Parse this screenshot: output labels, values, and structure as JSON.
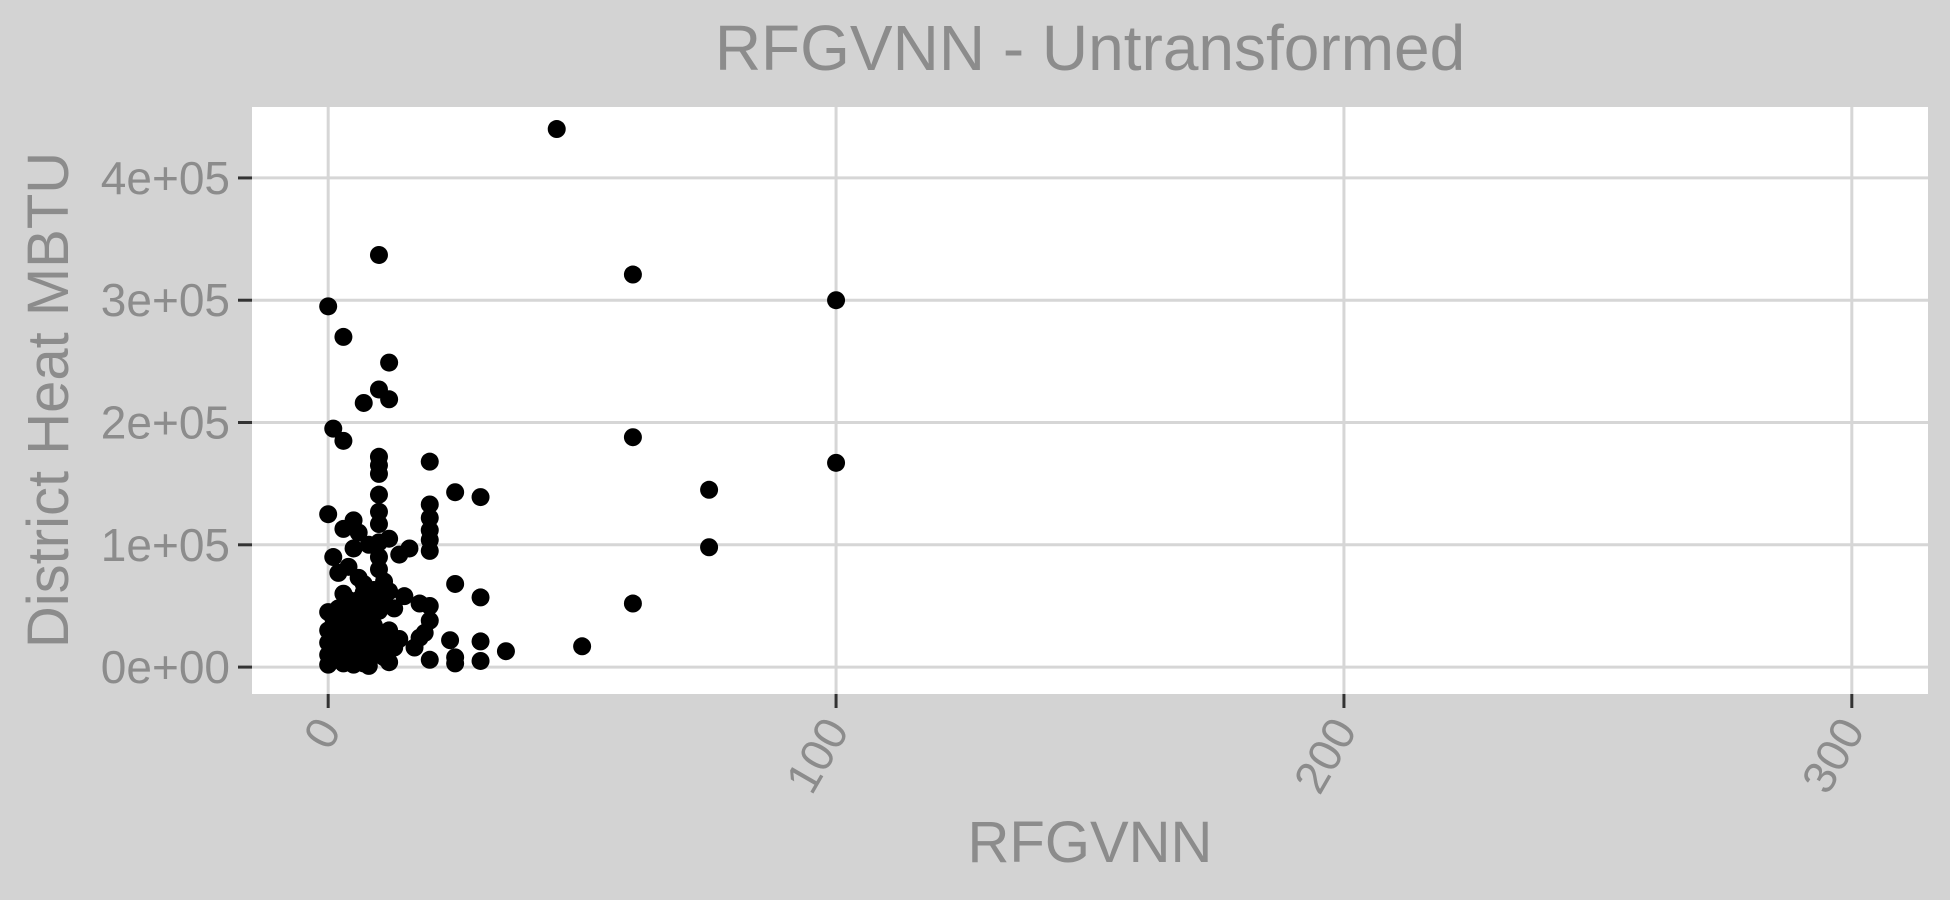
{
  "chart_data": {
    "type": "scatter",
    "title": "RFGVNN - Untransformed",
    "xlabel": "RFGVNN",
    "ylabel": "District Heat MBTU",
    "xlim": [
      -15,
      315
    ],
    "ylim": [
      -22000,
      458000
    ],
    "x_ticks": [
      0,
      100,
      200,
      300
    ],
    "x_tick_labels": [
      "0",
      "100",
      "200",
      "300"
    ],
    "y_ticks": [
      0,
      100000,
      200000,
      300000,
      400000
    ],
    "y_tick_labels": [
      "0e+00",
      "1e+05",
      "2e+05",
      "3e+05",
      "4e+05"
    ],
    "grid": true,
    "legend": "none",
    "colors": {
      "background": "#d3d3d3",
      "panel": "#ffffff",
      "grid": "#d6d6d6",
      "point": "#000000",
      "text": "#8c8c8c"
    },
    "points": [
      [
        45,
        440000
      ],
      [
        10,
        337000
      ],
      [
        60,
        321000
      ],
      [
        100,
        300000
      ],
      [
        0,
        295000
      ],
      [
        3,
        270000
      ],
      [
        12,
        249000
      ],
      [
        10,
        227000
      ],
      [
        12,
        219000
      ],
      [
        7,
        216000
      ],
      [
        1,
        195000
      ],
      [
        3,
        185000
      ],
      [
        60,
        188000
      ],
      [
        100,
        167000
      ],
      [
        20,
        168000
      ],
      [
        75,
        145000
      ],
      [
        75,
        98000
      ],
      [
        25,
        143000
      ],
      [
        30,
        139000
      ],
      [
        60,
        52000
      ],
      [
        50,
        17000
      ],
      [
        35,
        13000
      ],
      [
        10,
        172000
      ],
      [
        10,
        165000
      ],
      [
        10,
        158000
      ],
      [
        10,
        141000
      ],
      [
        10,
        127000
      ],
      [
        10,
        117000
      ],
      [
        10,
        102000
      ],
      [
        10,
        90000
      ],
      [
        10,
        80000
      ],
      [
        20,
        133000
      ],
      [
        20,
        122000
      ],
      [
        20,
        112000
      ],
      [
        20,
        104000
      ],
      [
        20,
        95000
      ],
      [
        16,
        97000
      ],
      [
        14,
        92000
      ],
      [
        0,
        125000
      ],
      [
        5,
        120000
      ],
      [
        6,
        110000
      ],
      [
        3,
        113000
      ],
      [
        12,
        105000
      ],
      [
        8,
        100000
      ],
      [
        5,
        97000
      ],
      [
        1,
        90000
      ],
      [
        2,
        77000
      ],
      [
        4,
        82000
      ],
      [
        6,
        73000
      ],
      [
        7,
        68000
      ],
      [
        11,
        70000
      ],
      [
        9,
        63000
      ],
      [
        12,
        62000
      ],
      [
        15,
        58000
      ],
      [
        18,
        52000
      ],
      [
        20,
        50000
      ],
      [
        20,
        38000
      ],
      [
        25,
        68000
      ],
      [
        30,
        57000
      ],
      [
        3,
        60000
      ],
      [
        4,
        55000
      ],
      [
        5,
        50000
      ],
      [
        6,
        46000
      ],
      [
        7,
        42000
      ],
      [
        8,
        38000
      ],
      [
        9,
        34000
      ],
      [
        0,
        45000
      ],
      [
        1,
        40000
      ],
      [
        2,
        35000
      ],
      [
        3,
        30000
      ],
      [
        4,
        25000
      ],
      [
        5,
        20000
      ],
      [
        6,
        15000
      ],
      [
        7,
        10000
      ],
      [
        8,
        5000
      ],
      [
        0,
        30000
      ],
      [
        0,
        20000
      ],
      [
        0,
        10000
      ],
      [
        0,
        2000
      ],
      [
        1,
        15000
      ],
      [
        2,
        8000
      ],
      [
        3,
        3000
      ],
      [
        4,
        12000
      ],
      [
        5,
        6000
      ],
      [
        6,
        28000
      ],
      [
        7,
        22000
      ],
      [
        8,
        18000
      ],
      [
        9,
        26000
      ],
      [
        10,
        12000
      ],
      [
        11,
        8000
      ],
      [
        12,
        4000
      ],
      [
        13,
        16000
      ],
      [
        14,
        23000
      ],
      [
        12,
        30000
      ],
      [
        10,
        46000
      ],
      [
        9,
        52000
      ],
      [
        11,
        56000
      ],
      [
        13,
        48000
      ],
      [
        17,
        16000
      ],
      [
        18,
        24000
      ],
      [
        19,
        28000
      ],
      [
        20,
        6000
      ],
      [
        24,
        22000
      ],
      [
        25,
        8000
      ],
      [
        25,
        3000
      ],
      [
        30,
        21000
      ],
      [
        30,
        5000
      ],
      [
        2,
        22000
      ],
      [
        3,
        42000
      ],
      [
        4,
        36000
      ],
      [
        5,
        32000
      ],
      [
        6,
        40000
      ],
      [
        7,
        34000
      ],
      [
        8,
        26000
      ],
      [
        9,
        14000
      ],
      [
        1,
        27000
      ],
      [
        2,
        48000
      ],
      [
        3,
        18000
      ],
      [
        4,
        6000
      ],
      [
        5,
        2000
      ],
      [
        6,
        9000
      ],
      [
        7,
        3000
      ],
      [
        8,
        1000
      ],
      [
        9,
        20000
      ],
      [
        10,
        25000
      ],
      [
        11,
        19000
      ],
      [
        12,
        14000
      ],
      [
        1,
        33000
      ],
      [
        2,
        13000
      ],
      [
        5,
        44000
      ],
      [
        6,
        55000
      ],
      [
        7,
        61000
      ],
      [
        8,
        57000
      ]
    ]
  }
}
